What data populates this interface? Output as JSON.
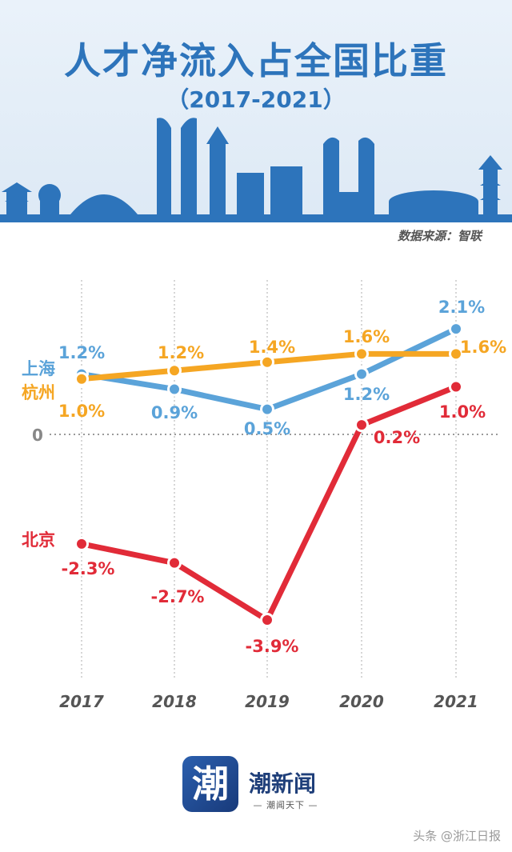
{
  "title": "人才净流入占全国比重",
  "subtitle": "（2017-2021）",
  "source": "数据来源：智联",
  "logo": {
    "glyph": "潮",
    "name": "潮新闻",
    "slogan": "— 潮闻天下 —"
  },
  "watermark": "头条 @浙江日报",
  "colors": {
    "blue": "#5ba3d9",
    "orange": "#f5a623",
    "red": "#e12b38",
    "title": "#2d74bb"
  },
  "chart_data": {
    "type": "line",
    "x": [
      "2017",
      "2018",
      "2019",
      "2020",
      "2021"
    ],
    "zero_label": "0",
    "series": [
      {
        "name": "上海",
        "color": "#5ba3d9",
        "values": [
          1.2,
          0.9,
          0.5,
          1.2,
          2.1
        ],
        "labels": [
          "1.2%",
          "0.9%",
          "0.5%",
          "1.2%",
          "2.1%"
        ]
      },
      {
        "name": "杭州",
        "color": "#f5a623",
        "values": [
          1.0,
          1.2,
          1.4,
          1.6,
          1.6
        ],
        "labels": [
          "1.0%",
          "1.2%",
          "1.4%",
          "1.6%",
          "1.6%"
        ]
      },
      {
        "name": "北京",
        "color": "#e12b38",
        "values": [
          -2.3,
          -2.7,
          -3.9,
          0.2,
          1.0
        ],
        "labels": [
          "-2.3%",
          "-2.7%",
          "-3.9%",
          "0.2%",
          "1.0%"
        ]
      }
    ],
    "unit": "%",
    "grid": "vertical dotted",
    "legend": "inline-left"
  }
}
